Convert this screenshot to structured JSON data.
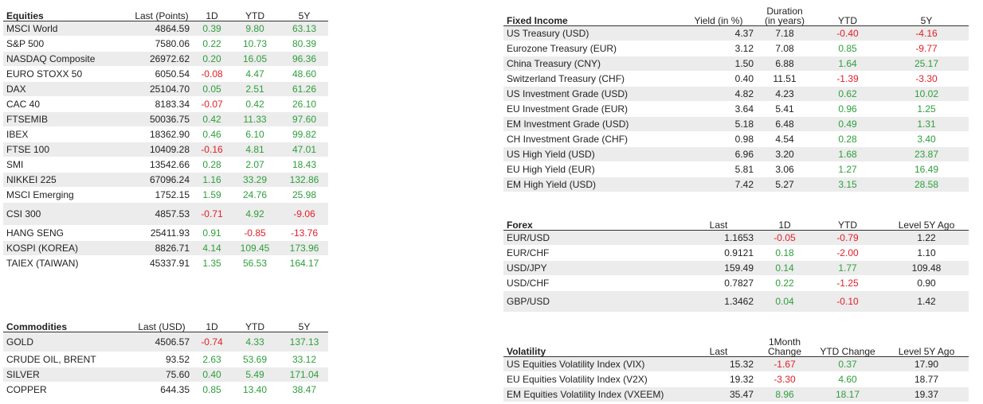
{
  "equities": {
    "title": "Equities",
    "headers": [
      "Last (Points)",
      "1D",
      "YTD",
      "5Y"
    ],
    "rows": [
      {
        "name": "MSCI World",
        "last": "4864.59",
        "d1": "0.39",
        "ytd": "9.80",
        "y5": "63.13"
      },
      {
        "name": "S&P 500",
        "last": "7580.06",
        "d1": "0.22",
        "ytd": "10.73",
        "y5": "80.39"
      },
      {
        "name": "NASDAQ Composite",
        "last": "26972.62",
        "d1": "0.20",
        "ytd": "16.05",
        "y5": "96.36"
      },
      {
        "name": "EURO STOXX 50",
        "last": "6050.54",
        "d1": "-0.08",
        "ytd": "4.47",
        "y5": "48.60"
      },
      {
        "name": "DAX",
        "last": "25104.70",
        "d1": "0.05",
        "ytd": "2.51",
        "y5": "61.26"
      },
      {
        "name": "CAC 40",
        "last": "8183.34",
        "d1": "-0.07",
        "ytd": "0.42",
        "y5": "26.10"
      },
      {
        "name": "FTSEMIB",
        "last": "50036.75",
        "d1": "0.42",
        "ytd": "11.33",
        "y5": "97.60"
      },
      {
        "name": "IBEX",
        "last": "18362.90",
        "d1": "0.46",
        "ytd": "6.10",
        "y5": "99.82"
      },
      {
        "name": "FTSE 100",
        "last": "10409.28",
        "d1": "-0.16",
        "ytd": "4.81",
        "y5": "47.01"
      },
      {
        "name": "SMI",
        "last": "13542.66",
        "d1": "0.28",
        "ytd": "2.07",
        "y5": "18.43"
      },
      {
        "name": "NIKKEI 225",
        "last": "67096.24",
        "d1": "1.16",
        "ytd": "33.29",
        "y5": "132.86"
      },
      {
        "name": "MSCI Emerging",
        "last": "1752.15",
        "d1": "1.59",
        "ytd": "24.76",
        "y5": "25.98"
      },
      {
        "name": "CSI 300",
        "last": "4857.53",
        "d1": "-0.71",
        "ytd": "4.92",
        "y5": "-9.06"
      },
      {
        "name": "HANG SENG",
        "last": "25411.93",
        "d1": "0.91",
        "ytd": "-0.85",
        "y5": "-13.76"
      },
      {
        "name": "KOSPI (KOREA)",
        "last": "8826.71",
        "d1": "4.14",
        "ytd": "109.45",
        "y5": "173.96"
      },
      {
        "name": "TAIEX (TAIWAN)",
        "last": "45337.91",
        "d1": "1.35",
        "ytd": "56.53",
        "y5": "164.17"
      }
    ]
  },
  "commodities": {
    "title": "Commodities",
    "headers": [
      "Last (USD)",
      "1D",
      "YTD",
      "5Y"
    ],
    "rows": [
      {
        "name": "GOLD",
        "last": "4506.57",
        "d1": "-0.74",
        "ytd": "4.33",
        "y5": "137.13"
      },
      {
        "name": "CRUDE OIL, BRENT",
        "last": "93.52",
        "d1": "2.63",
        "ytd": "53.69",
        "y5": "33.12"
      },
      {
        "name": "SILVER",
        "last": "75.60",
        "d1": "0.40",
        "ytd": "5.49",
        "y5": "171.04"
      },
      {
        "name": "COPPER",
        "last": "644.35",
        "d1": "0.85",
        "ytd": "13.40",
        "y5": "38.47"
      }
    ]
  },
  "fixed_income": {
    "title": "Fixed Income",
    "headers": [
      "Yield (in %)",
      "Duration (in years)",
      "YTD",
      "5Y"
    ],
    "rows": [
      {
        "name": "US Treasury (USD)",
        "c1": "4.37",
        "c2": "7.18",
        "c3": "-0.40",
        "c4": "-4.16"
      },
      {
        "name": "Eurozone Treasury (EUR)",
        "c1": "3.12",
        "c2": "7.08",
        "c3": "0.85",
        "c4": "-9.77"
      },
      {
        "name": "China Treasury (CNY)",
        "c1": "1.50",
        "c2": "6.88",
        "c3": "1.64",
        "c4": "25.17"
      },
      {
        "name": "Switzerland Treasury (CHF)",
        "c1": "0.40",
        "c2": "11.51",
        "c3": "-1.39",
        "c4": "-3.30"
      },
      {
        "name": "US Investment Grade (USD)",
        "c1": "4.82",
        "c2": "4.23",
        "c3": "0.62",
        "c4": "10.02"
      },
      {
        "name": "EU Investment Grade (EUR)",
        "c1": "3.64",
        "c2": "5.41",
        "c3": "0.96",
        "c4": "1.25"
      },
      {
        "name": "EM Investment Grade (USD)",
        "c1": "5.18",
        "c2": "6.48",
        "c3": "0.49",
        "c4": "1.31"
      },
      {
        "name": "CH Investment Grade (CHF)",
        "c1": "0.98",
        "c2": "4.54",
        "c3": "0.28",
        "c4": "3.40"
      },
      {
        "name": "US High Yield (USD)",
        "c1": "6.96",
        "c2": "3.20",
        "c3": "1.68",
        "c4": "23.87"
      },
      {
        "name": "EU High Yield (EUR)",
        "c1": "5.81",
        "c2": "3.06",
        "c3": "1.27",
        "c4": "16.49"
      },
      {
        "name": "EM High Yield (USD)",
        "c1": "7.42",
        "c2": "5.27",
        "c3": "3.15",
        "c4": "28.58"
      }
    ]
  },
  "forex": {
    "title": "Forex",
    "headers": [
      "Last",
      "1D",
      "YTD",
      "Level 5Y Ago"
    ],
    "rows": [
      {
        "name": "EUR/USD",
        "c1": "1.1653",
        "c2": "-0.05",
        "c3": "-0.79",
        "c4": "1.22"
      },
      {
        "name": "EUR/CHF",
        "c1": "0.9121",
        "c2": "0.18",
        "c3": "-2.00",
        "c4": "1.10"
      },
      {
        "name": "USD/JPY",
        "c1": "159.49",
        "c2": "0.14",
        "c3": "1.77",
        "c4": "109.48"
      },
      {
        "name": "USD/CHF",
        "c1": "0.7827",
        "c2": "0.22",
        "c3": "-1.25",
        "c4": "0.90"
      },
      {
        "name": "GBP/USD",
        "c1": "1.3462",
        "c2": "0.04",
        "c3": "-0.10",
        "c4": "1.42"
      }
    ]
  },
  "volatility": {
    "title": "Volatility",
    "headers": [
      "Last",
      "1Month Change",
      "YTD Change",
      "Level 5Y Ago"
    ],
    "rows": [
      {
        "name": "US Equities Volatility Index (VIX)",
        "c1": "15.32",
        "c2": "-1.67",
        "c3": "0.37",
        "c4": "17.90"
      },
      {
        "name": "EU Equities Volatility Index (V2X)",
        "c1": "19.32",
        "c2": "-3.30",
        "c3": "4.60",
        "c4": "18.77"
      },
      {
        "name": "EM Equities Volatility Index (VXEEM)",
        "c1": "35.47",
        "c2": "8.96",
        "c3": "18.17",
        "c4": "19.37"
      }
    ]
  },
  "colors": {
    "positive": "#2e9e3c",
    "negative": "#e0202a",
    "shade": "#ececec"
  }
}
